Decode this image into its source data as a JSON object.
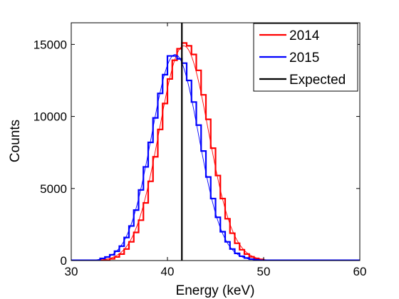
{
  "chart_data": {
    "type": "line",
    "xlabel": "Energy (keV)",
    "ylabel": "Counts",
    "xlim": [
      30,
      60
    ],
    "ylim": [
      0,
      16500
    ],
    "xticks": [
      30,
      40,
      50,
      60
    ],
    "yticks": [
      0,
      5000,
      10000,
      15000
    ],
    "x_tick_labels": [
      "30",
      "40",
      "50",
      "60"
    ],
    "y_tick_labels": [
      "0",
      "5000",
      "10000",
      "15000"
    ],
    "legend_position": "top-right",
    "grid": false,
    "bin_width": 0.5,
    "series": [
      {
        "name": "2014",
        "color": "#ff0000",
        "style": "step",
        "x": [
          34,
          34.5,
          35,
          35.5,
          36,
          36.5,
          37,
          37.5,
          38,
          38.5,
          39,
          39.5,
          40,
          40.5,
          41,
          41.5,
          42,
          42.5,
          43,
          43.5,
          44,
          44.5,
          45,
          45.5,
          46,
          46.5,
          47,
          47.5,
          48,
          48.5,
          49,
          49.5
        ],
        "y": [
          120,
          250,
          450,
          800,
          1300,
          1950,
          2800,
          4000,
          5500,
          7200,
          9100,
          10900,
          12600,
          13900,
          14700,
          15100,
          14900,
          14300,
          13200,
          11500,
          9800,
          7800,
          5900,
          4300,
          2900,
          1900,
          1200,
          750,
          450,
          260,
          150,
          80
        ]
      },
      {
        "name": "2015",
        "color": "#0000ff",
        "style": "step",
        "x": [
          33,
          33.5,
          34,
          34.5,
          35,
          35.5,
          36,
          36.5,
          37,
          37.5,
          38,
          38.5,
          39,
          39.5,
          40,
          40.5,
          41,
          41.5,
          42,
          42.5,
          43,
          43.5,
          44,
          44.5,
          45,
          45.5,
          46,
          46.5,
          47,
          47.5,
          48,
          48.5,
          49
        ],
        "y": [
          150,
          250,
          400,
          650,
          1000,
          1600,
          2400,
          3500,
          4900,
          6500,
          8200,
          9900,
          11600,
          12900,
          14200,
          14200,
          14000,
          13700,
          12500,
          11000,
          9400,
          7600,
          5800,
          4300,
          3000,
          2000,
          1300,
          800,
          500,
          300,
          180,
          100,
          60
        ]
      },
      {
        "name": "Expected",
        "color": "#000000",
        "style": "vertical-line",
        "x": [
          41.5
        ]
      }
    ],
    "fits": [
      {
        "color": "#ff0000",
        "mean": 41.7,
        "sigma": 2.55,
        "peak": 14900
      },
      {
        "color": "#0000ff",
        "mean": 40.8,
        "sigma": 2.45,
        "peak": 14300
      }
    ]
  }
}
